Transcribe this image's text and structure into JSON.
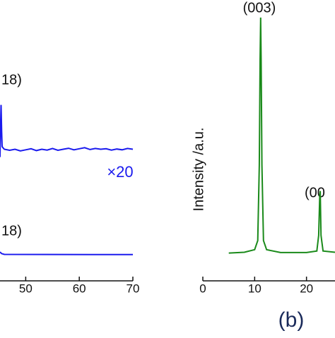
{
  "chart_data": [
    {
      "type": "line",
      "annotations": [
        "18)",
        "×20",
        "18)"
      ],
      "xlim": [
        45.2,
        70
      ],
      "xticks": [
        50,
        60,
        70
      ],
      "ylim": [
        0,
        105
      ],
      "series": [
        {
          "color": "#1a1aee",
          "x": [
            45.2,
            45.3,
            45.4,
            45.5,
            45.6,
            45.8,
            46,
            47,
            48,
            49,
            50,
            51,
            52,
            53,
            54,
            55,
            56,
            57,
            58,
            59,
            60,
            61,
            62,
            63,
            64,
            65,
            66,
            67,
            68,
            69,
            70
          ],
          "values": [
            48,
            60,
            68,
            58,
            52,
            51.5,
            51,
            50.6,
            51,
            50.4,
            50.8,
            51.2,
            50.5,
            51,
            50.7,
            51.3,
            50.6,
            51,
            51.4,
            50.8,
            51.2,
            51.6,
            50.9,
            51.3,
            51,
            51.2,
            50.7,
            51.1,
            50.8,
            51.3,
            51
          ]
        },
        {
          "color": "#1a1aee",
          "x": [
            45.2,
            45.5,
            46,
            70
          ],
          "values": [
            11.6,
            11,
            10.7,
            10.6
          ]
        }
      ]
    },
    {
      "type": "line",
      "y_label": "Intensity /a.u.",
      "panel_label": "(b)",
      "annotations": [
        "(003)",
        "(00"
      ],
      "xlim": [
        0,
        25.5
      ],
      "xticks": [
        0,
        10,
        20
      ],
      "ylim": [
        0,
        105
      ],
      "series": [
        {
          "color": "#1a8a1a",
          "x": [
            5,
            8,
            10,
            10.6,
            10.9,
            11.05,
            11.15,
            11.25,
            11.4,
            11.7,
            12.3,
            15,
            20,
            22,
            22.35,
            22.55,
            22.65,
            22.8,
            23.2,
            25.5
          ],
          "values": [
            11.2,
            11.5,
            12.5,
            16,
            45,
            85,
            101.5,
            85,
            45,
            16,
            12.5,
            11.4,
            11.4,
            12,
            18,
            33,
            35,
            18,
            12,
            11.5
          ]
        }
      ]
    }
  ]
}
